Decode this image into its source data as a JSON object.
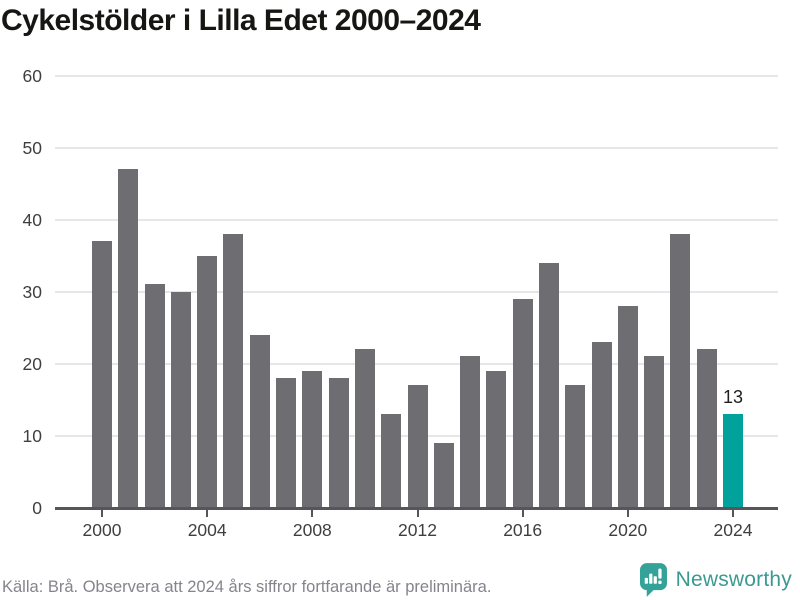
{
  "title": "Cykelstölder i Lilla Edet 2000–2024",
  "chart_data": {
    "type": "bar",
    "title": "Cykelstölder i Lilla Edet 2000–2024",
    "x": [
      2000,
      2001,
      2002,
      2003,
      2004,
      2005,
      2006,
      2007,
      2008,
      2009,
      2010,
      2011,
      2012,
      2013,
      2014,
      2015,
      2016,
      2017,
      2018,
      2019,
      2020,
      2021,
      2022,
      2023,
      2024
    ],
    "values": [
      37,
      47,
      31,
      30,
      35,
      38,
      24,
      18,
      19,
      18,
      22,
      13,
      17,
      9,
      21,
      19,
      29,
      34,
      17,
      23,
      28,
      21,
      38,
      22,
      13
    ],
    "highlight_index": 24,
    "highlight_label": "13",
    "ylim": [
      0,
      60
    ],
    "yticks": [
      0,
      10,
      20,
      30,
      40,
      50,
      60
    ],
    "xticks": [
      2000,
      2004,
      2008,
      2012,
      2016,
      2020,
      2024
    ],
    "grid": "horizontal",
    "legend": "none",
    "bar_color": "#6e6e72",
    "highlight_color": "#00a29b"
  },
  "footer": {
    "source": "Källa: Brå. Observera att 2024 års siffror fortfarande är preliminära."
  },
  "branding": {
    "name": "Newsworthy",
    "icon": "newsworthy-speech-bubble-bar-chart-icon",
    "color": "#3a9a92"
  }
}
